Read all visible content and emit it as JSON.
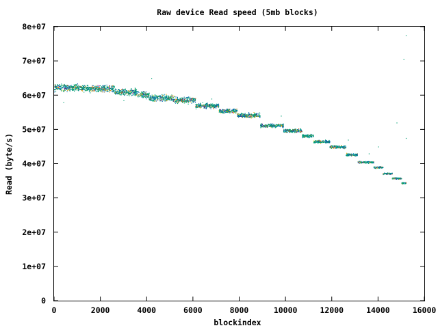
{
  "chart_data": {
    "type": "scatter",
    "title": "Raw device Read speed (5mb blocks)",
    "xlabel": "blockindex",
    "ylabel": "Read (byte/s)",
    "xlim": [
      0,
      16000
    ],
    "ylim": [
      0,
      80000000
    ],
    "xticks": [
      0,
      2000,
      4000,
      6000,
      8000,
      10000,
      12000,
      14000,
      16000
    ],
    "xtick_labels": [
      "0",
      "2000",
      "4000",
      "6000",
      "8000",
      "10000",
      "12000",
      "14000",
      "16000"
    ],
    "yticks": [
      0,
      10000000,
      20000000,
      30000000,
      40000000,
      50000000,
      60000000,
      70000000,
      80000000
    ],
    "ytick_labels": [
      "0",
      "1e+07",
      "2e+07",
      "3e+07",
      "4e+07",
      "5e+07",
      "6e+07",
      "7e+07",
      "8e+07"
    ],
    "grid": false,
    "legend": "none",
    "colors": [
      "#0060ad",
      "#009e73",
      "#e69f00",
      "#56b4e9",
      "#f0e442",
      "#8b008b",
      "#d55e00"
    ],
    "series": [
      {
        "segments": [
          {
            "x_start": 0,
            "x_end": 1000,
            "y": 62300000,
            "spread": 1400000
          },
          {
            "x_start": 1000,
            "x_end": 2600,
            "y": 62000000,
            "spread": 1400000
          },
          {
            "x_start": 2600,
            "x_end": 3600,
            "y": 61000000,
            "spread": 1400000
          },
          {
            "x_start": 3600,
            "x_end": 4100,
            "y": 60200000,
            "spread": 1300000
          },
          {
            "x_start": 4100,
            "x_end": 5100,
            "y": 59300000,
            "spread": 1300000
          },
          {
            "x_start": 5100,
            "x_end": 6100,
            "y": 58700000,
            "spread": 1300000
          },
          {
            "x_start": 6100,
            "x_end": 7100,
            "y": 57000000,
            "spread": 1000000
          },
          {
            "x_start": 7100,
            "x_end": 7900,
            "y": 55500000,
            "spread": 1000000
          },
          {
            "x_start": 7900,
            "x_end": 8900,
            "y": 54200000,
            "spread": 1000000
          },
          {
            "x_start": 8900,
            "x_end": 9900,
            "y": 51200000,
            "spread": 700000
          },
          {
            "x_start": 9900,
            "x_end": 10700,
            "y": 49700000,
            "spread": 700000
          },
          {
            "x_start": 10700,
            "x_end": 11200,
            "y": 48200000,
            "spread": 700000
          },
          {
            "x_start": 11200,
            "x_end": 11900,
            "y": 46500000,
            "spread": 600000
          },
          {
            "x_start": 11900,
            "x_end": 12600,
            "y": 45000000,
            "spread": 600000
          },
          {
            "x_start": 12600,
            "x_end": 13100,
            "y": 42700000,
            "spread": 500000
          },
          {
            "x_start": 13100,
            "x_end": 13800,
            "y": 40500000,
            "spread": 400000
          },
          {
            "x_start": 13800,
            "x_end": 14200,
            "y": 39000000,
            "spread": 400000
          },
          {
            "x_start": 14200,
            "x_end": 14600,
            "y": 37200000,
            "spread": 300000
          },
          {
            "x_start": 14600,
            "x_end": 15000,
            "y": 35800000,
            "spread": 300000
          },
          {
            "x_start": 15000,
            "x_end": 15200,
            "y": 34400000,
            "spread": 300000
          }
        ],
        "outliers": [
          {
            "x": 400,
            "y": 58000000
          },
          {
            "x": 3000,
            "y": 58500000
          },
          {
            "x": 4200,
            "y": 65000000
          },
          {
            "x": 6800,
            "y": 59000000
          },
          {
            "x": 12700,
            "y": 47000000
          },
          {
            "x": 14000,
            "y": 45000000
          },
          {
            "x": 14800,
            "y": 52000000
          },
          {
            "x": 15100,
            "y": 70500000
          },
          {
            "x": 15200,
            "y": 77500000
          },
          {
            "x": 13600,
            "y": 43000000
          },
          {
            "x": 15200,
            "y": 47500000
          },
          {
            "x": 9800,
            "y": 54000000
          }
        ]
      }
    ]
  }
}
